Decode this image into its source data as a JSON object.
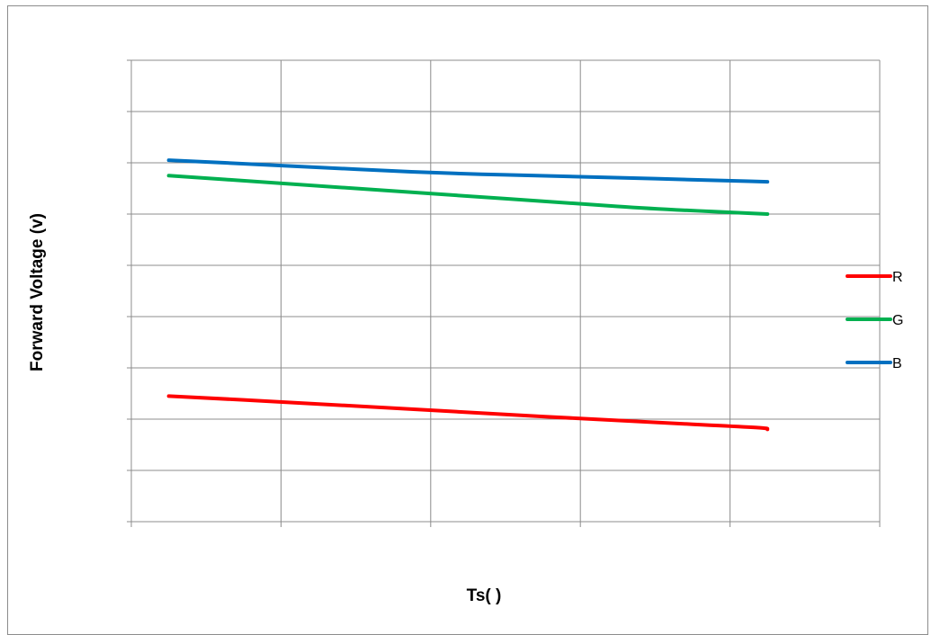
{
  "chart_data": {
    "type": "line",
    "title": "",
    "xlabel": "Ts(   )",
    "ylabel": "Forward Voltage (v)",
    "x": [
      0,
      1,
      2,
      3,
      4,
      5
    ],
    "grid": true,
    "legend_position": "right",
    "xlim": [
      0,
      5
    ],
    "ylim": [
      0,
      9
    ],
    "series": [
      {
        "name": "R",
        "color": "#ff0000",
        "points": [
          [
            0.25,
            2.45
          ],
          [
            1.25,
            2.3
          ],
          [
            2.25,
            2.13
          ],
          [
            3.25,
            1.97
          ],
          [
            4.25,
            1.83
          ],
          [
            4.25,
            1.8
          ]
        ]
      },
      {
        "name": "G",
        "color": "#00b050",
        "points": [
          [
            0.25,
            6.75
          ],
          [
            1.0,
            6.6
          ],
          [
            2.0,
            6.4
          ],
          [
            3.0,
            6.2
          ],
          [
            3.5,
            6.1
          ],
          [
            4.25,
            6.0
          ]
        ]
      },
      {
        "name": "B",
        "color": "#0070c0",
        "points": [
          [
            0.25,
            7.05
          ],
          [
            1.0,
            6.95
          ],
          [
            2.0,
            6.8
          ],
          [
            3.0,
            6.73
          ],
          [
            4.0,
            6.65
          ],
          [
            4.25,
            6.63
          ]
        ]
      }
    ]
  }
}
